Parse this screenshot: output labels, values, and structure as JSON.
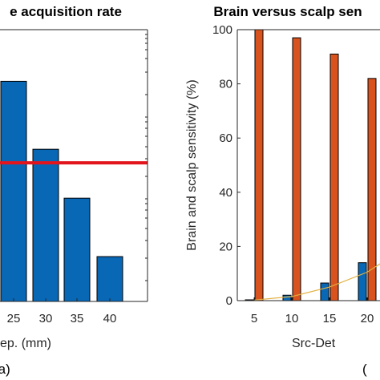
{
  "chart_data": [
    {
      "type": "bar",
      "title": "e acquisition rate",
      "xlabel": "ep. (mm)",
      "ylabel": "",
      "panel_label": "(a)",
      "categories": [
        "25",
        "30",
        "35",
        "40"
      ],
      "values": [
        0.81,
        0.56,
        0.38,
        0.165
      ],
      "reference_line": 0.51,
      "ylim": [
        0,
        1.0
      ],
      "grid": false,
      "colors": {
        "bar": "#0868B6",
        "reference_line": "#E3151C"
      }
    },
    {
      "type": "bar",
      "title": "Brain versus scalp sen",
      "xlabel": "Src-Det",
      "ylabel": "Brain and scalp sensitivity (%)",
      "panel_label": "(",
      "categories": [
        "5",
        "10",
        "15",
        "20"
      ],
      "yticks": [
        "0",
        "20",
        "40",
        "60",
        "80",
        "100"
      ],
      "series": [
        {
          "values": [
            0.3,
            2,
            6.5,
            14
          ]
        },
        {
          "values": [
            100,
            97,
            91,
            82
          ]
        }
      ],
      "trend_line": {
        "x": [
          5,
          10,
          15,
          20,
          22.5
        ],
        "y": [
          0.2,
          1.5,
          5,
          10.5,
          15
        ]
      },
      "ylim": [
        0,
        100
      ],
      "grid": false,
      "colors": {
        "brain": "#0868B6",
        "scalp": "#D9531E",
        "trend": "#E2B040"
      }
    }
  ]
}
